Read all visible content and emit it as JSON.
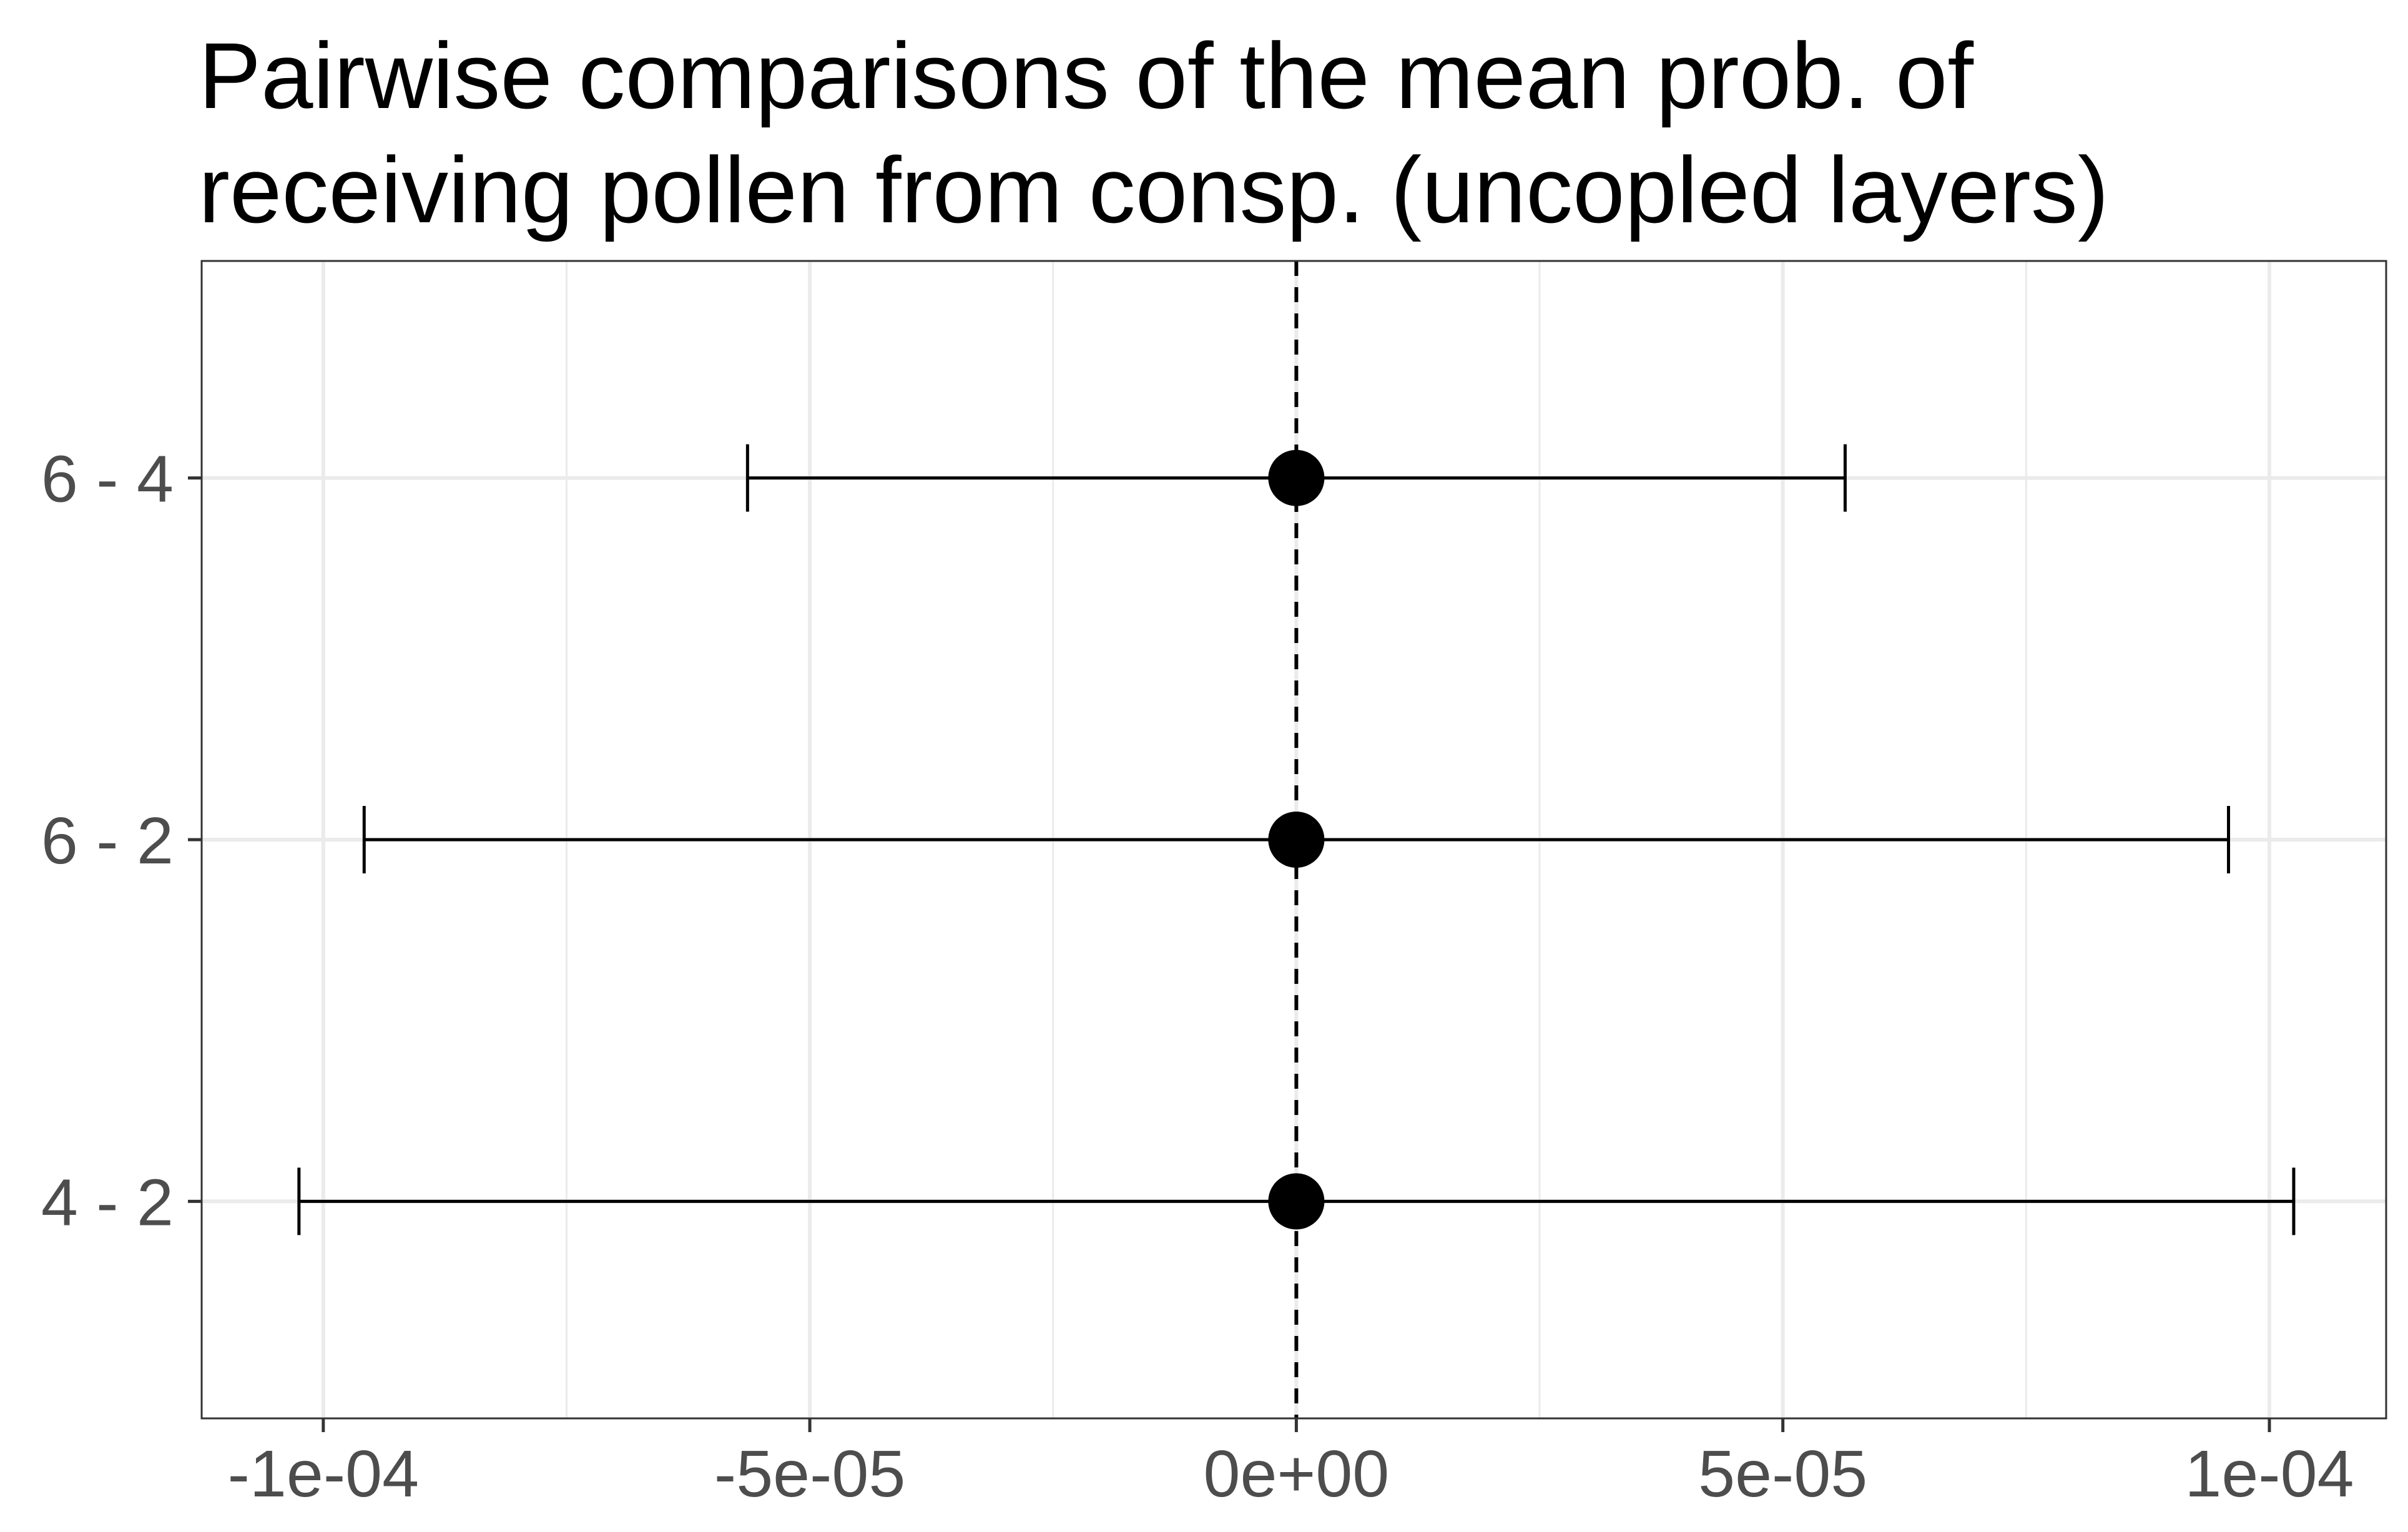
{
  "chart_data": {
    "type": "errorbar",
    "title_lines": [
      "Pairwise comparisons of the mean prob. of",
      "receiving pollen from consp. (uncopled layers)"
    ],
    "xlabel": "",
    "ylabel": "",
    "xlim": [
      -0.0001125,
      0.000112
    ],
    "x_ticks": [
      -0.0001,
      -5e-05,
      0,
      5e-05,
      0.0001
    ],
    "x_tick_labels": [
      "-1e-04",
      "-5e-05",
      "0e+00",
      "5e-05",
      "1e-04"
    ],
    "categories": [
      "6 - 4",
      "6 - 2",
      "4 - 2"
    ],
    "estimates": [
      0,
      0,
      0
    ],
    "lower": [
      -5.64e-05,
      -9.58e-05,
      -0.0001025
    ],
    "upper": [
      5.64e-05,
      9.58e-05,
      0.0001025
    ],
    "reference_line": 0,
    "grid": true,
    "colors": {
      "point": "#000000",
      "errorbar": "#000000",
      "grid": "#ebebeb",
      "panel_border": "#333333",
      "tick_label": "#4d4d4d"
    }
  }
}
